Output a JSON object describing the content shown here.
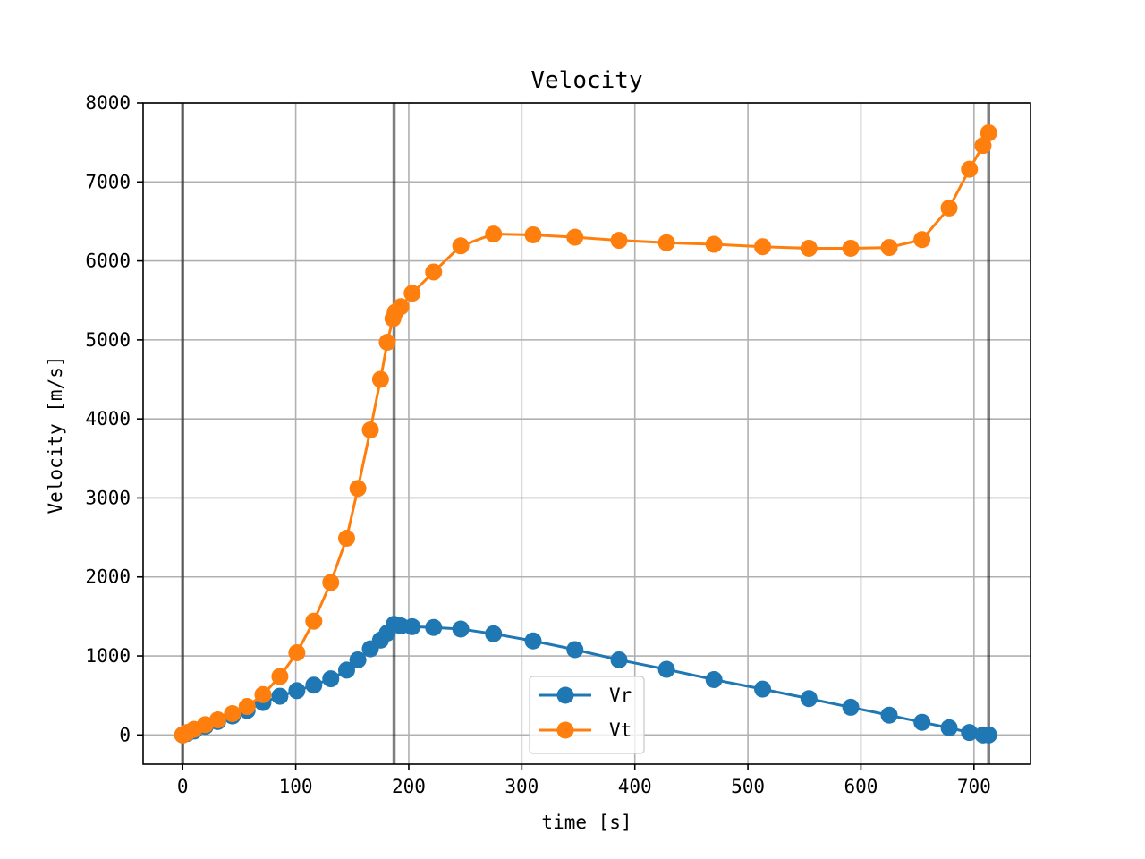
{
  "chart_data": {
    "type": "line",
    "title": "Velocity",
    "xlabel": "time [s]",
    "ylabel": "Velocity [m/s]",
    "xlim": [
      -35,
      750
    ],
    "ylim": [
      -370,
      8000
    ],
    "grid": true,
    "legend_position": "bottom-center",
    "xticks": [
      0,
      100,
      200,
      300,
      400,
      500,
      600,
      700
    ],
    "yticks": [
      0,
      1000,
      2000,
      3000,
      4000,
      5000,
      6000,
      7000,
      8000
    ],
    "vertical_lines": [
      0,
      187,
      713
    ],
    "series": [
      {
        "name": "Vr",
        "color": "#1f77b4",
        "x": [
          0,
          4,
          10,
          20,
          31,
          44,
          57,
          71,
          86,
          101,
          116,
          131,
          145,
          155,
          166,
          175,
          181,
          187,
          193,
          203,
          222,
          246,
          275,
          310,
          347,
          386,
          428,
          470,
          513,
          554,
          591,
          625,
          654,
          678,
          696,
          708,
          713
        ],
        "y": [
          0,
          20,
          50,
          110,
          170,
          240,
          310,
          410,
          490,
          560,
          630,
          710,
          820,
          950,
          1090,
          1200,
          1290,
          1400,
          1380,
          1370,
          1360,
          1340,
          1280,
          1190,
          1080,
          950,
          830,
          700,
          580,
          460,
          350,
          250,
          160,
          90,
          30,
          0,
          0
        ]
      },
      {
        "name": "Vt",
        "color": "#ff7f0e",
        "x": [
          0,
          4,
          10,
          20,
          31,
          44,
          57,
          71,
          86,
          101,
          116,
          131,
          145,
          155,
          166,
          175,
          181,
          186,
          188,
          193,
          203,
          222,
          246,
          275,
          310,
          347,
          386,
          428,
          470,
          513,
          554,
          591,
          625,
          654,
          678,
          696,
          708,
          713
        ],
        "y": [
          0,
          30,
          70,
          130,
          190,
          270,
          360,
          510,
          740,
          1040,
          1440,
          1930,
          2490,
          3120,
          3860,
          4500,
          4970,
          5270,
          5350,
          5420,
          5590,
          5860,
          6190,
          6340,
          6330,
          6300,
          6260,
          6230,
          6210,
          6180,
          6160,
          6160,
          6170,
          6270,
          6670,
          7160,
          7460,
          7620
        ]
      }
    ]
  }
}
